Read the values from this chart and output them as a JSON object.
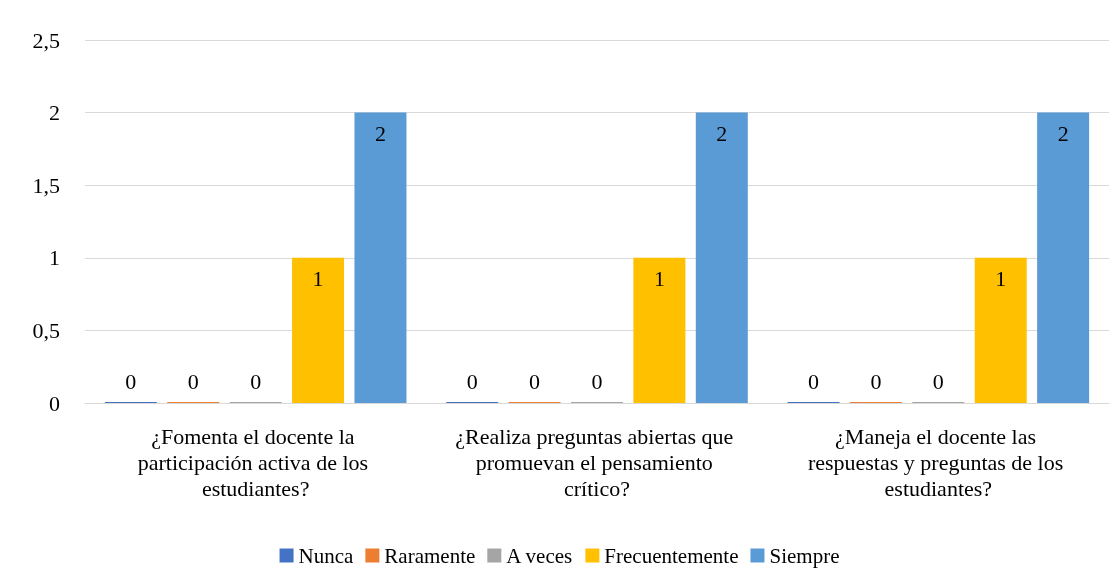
{
  "chart_data": {
    "type": "bar",
    "categories": [
      "¿Fomenta el docente la participación activa de los estudiantes?",
      "¿Realiza preguntas abiertas que promuevan el pensamiento crítico?",
      "¿Maneja el docente las respuestas y preguntas de los estudiantes?"
    ],
    "series": [
      {
        "name": "Nunca",
        "color": "#4472c4",
        "values": [
          0,
          0,
          0
        ]
      },
      {
        "name": "Raramente",
        "color": "#ed7d31",
        "values": [
          0,
          0,
          0
        ]
      },
      {
        "name": "A veces",
        "color": "#a5a5a5",
        "values": [
          0,
          0,
          0
        ]
      },
      {
        "name": "Frecuentemente",
        "color": "#ffc000",
        "values": [
          1,
          1,
          1
        ]
      },
      {
        "name": "Siempre",
        "color": "#5b9bd5",
        "values": [
          2,
          2,
          2
        ]
      }
    ],
    "ylim": [
      0,
      2.5
    ],
    "yticks": [
      0,
      {
        "value": 0.5,
        "label": "0,5"
      },
      1,
      {
        "value": 1.5,
        "label": "1,5"
      },
      2,
      {
        "value": 2.5,
        "label": "2,5"
      }
    ],
    "grid": "y",
    "legend": "bottom",
    "data_labels": true
  }
}
